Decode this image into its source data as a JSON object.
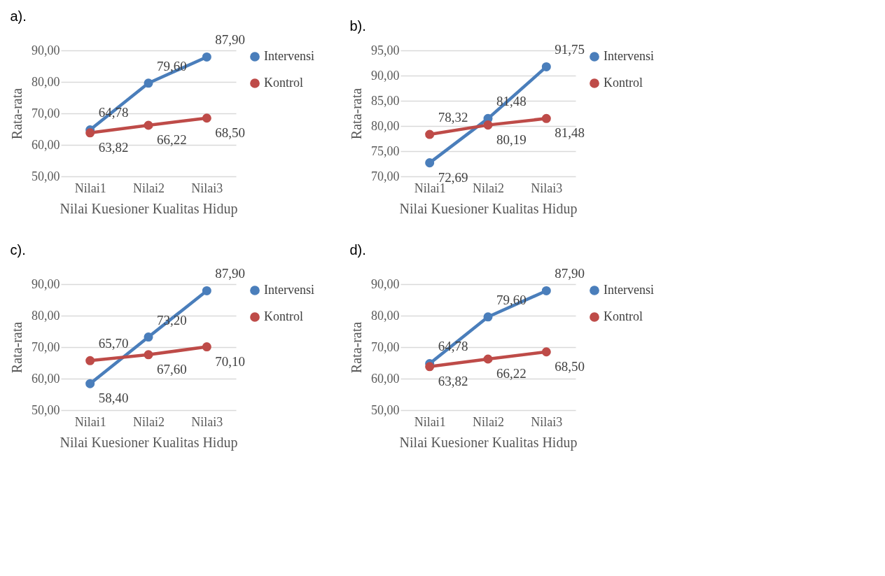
{
  "chart_data": [
    {
      "type": "line",
      "title": "a).",
      "xlabel": "Nilai Kuesioner Kualitas Hidup",
      "ylabel": "Rata-rata",
      "categories": [
        "Nilai1",
        "Nilai2",
        "Nilai3"
      ],
      "ylim": [
        50,
        90
      ],
      "yticks": [
        {
          "value": 50,
          "label": "50,00"
        },
        {
          "value": 60,
          "label": "60,00"
        },
        {
          "value": 70,
          "label": "70,00"
        },
        {
          "value": 80,
          "label": "80,00"
        },
        {
          "value": 90,
          "label": "90,00"
        }
      ],
      "grid": "y",
      "legend": "right",
      "marker": "circle",
      "line_style": "solid",
      "series": [
        {
          "name": "Intervensi",
          "color": "#4a7ebb",
          "values": [
            64.78,
            79.6,
            87.9
          ],
          "value_labels": [
            "64,78",
            "79,60",
            "87,90"
          ]
        },
        {
          "name": "Kontrol",
          "color": "#be4b48",
          "values": [
            63.82,
            66.22,
            68.5
          ],
          "value_labels": [
            "63,82",
            "66,22",
            "68,50"
          ]
        }
      ]
    },
    {
      "type": "line",
      "title": "b).",
      "xlabel": "Nilai Kuesioner Kualitas Hidup",
      "ylabel": "Rata-rata",
      "categories": [
        "Nilai1",
        "Nilai2",
        "Nilai3"
      ],
      "ylim": [
        70,
        95
      ],
      "yticks": [
        {
          "value": 70,
          "label": "70,00"
        },
        {
          "value": 75,
          "label": "75,00"
        },
        {
          "value": 80,
          "label": "80,00"
        },
        {
          "value": 85,
          "label": "85,00"
        },
        {
          "value": 90,
          "label": "90,00"
        },
        {
          "value": 95,
          "label": "95,00"
        }
      ],
      "grid": "y",
      "legend": "right",
      "marker": "circle",
      "line_style": "solid",
      "series": [
        {
          "name": "Intervensi",
          "color": "#4a7ebb",
          "values": [
            72.69,
            81.48,
            91.75
          ],
          "value_labels": [
            "72,69",
            "81,48",
            "91,75"
          ]
        },
        {
          "name": "Kontrol",
          "color": "#be4b48",
          "values": [
            78.32,
            80.19,
            81.48
          ],
          "value_labels": [
            "78,32",
            "80,19",
            "81,48"
          ]
        }
      ]
    },
    {
      "type": "line",
      "title": "c).",
      "xlabel": "Nilai Kuesioner Kualitas Hidup",
      "ylabel": "Rata-rata",
      "categories": [
        "Nilai1",
        "Nilai2",
        "Nilai3"
      ],
      "ylim": [
        50,
        90
      ],
      "yticks": [
        {
          "value": 50,
          "label": "50,00"
        },
        {
          "value": 60,
          "label": "60,00"
        },
        {
          "value": 70,
          "label": "70,00"
        },
        {
          "value": 80,
          "label": "80,00"
        },
        {
          "value": 90,
          "label": "90,00"
        }
      ],
      "grid": "y",
      "legend": "right",
      "marker": "circle",
      "line_style": "solid",
      "series": [
        {
          "name": "Intervensi",
          "color": "#4a7ebb",
          "values": [
            58.4,
            73.2,
            87.9
          ],
          "value_labels": [
            "58,40",
            "73,20",
            "87,90"
          ]
        },
        {
          "name": "Kontrol",
          "color": "#be4b48",
          "values": [
            65.7,
            67.6,
            70.1
          ],
          "value_labels": [
            "65,70",
            "67,60",
            "70,10"
          ]
        }
      ]
    },
    {
      "type": "line",
      "title": "d).",
      "xlabel": "Nilai Kuesioner Kualitas Hidup",
      "ylabel": "Rata-rata",
      "categories": [
        "Nilai1",
        "Nilai2",
        "Nilai3"
      ],
      "ylim": [
        50,
        90
      ],
      "yticks": [
        {
          "value": 50,
          "label": "50,00"
        },
        {
          "value": 60,
          "label": "60,00"
        },
        {
          "value": 70,
          "label": "70,00"
        },
        {
          "value": 80,
          "label": "80,00"
        },
        {
          "value": 90,
          "label": "90,00"
        }
      ],
      "grid": "y",
      "legend": "right",
      "marker": "circle",
      "line_style": "solid",
      "series": [
        {
          "name": "Intervensi",
          "color": "#4a7ebb",
          "values": [
            64.78,
            79.6,
            87.9
          ],
          "value_labels": [
            "64,78",
            "79,60",
            "87,90"
          ]
        },
        {
          "name": "Kontrol",
          "color": "#be4b48",
          "values": [
            63.82,
            66.22,
            68.5
          ],
          "value_labels": [
            "63,82",
            "66,22",
            "68,50"
          ]
        }
      ]
    }
  ]
}
